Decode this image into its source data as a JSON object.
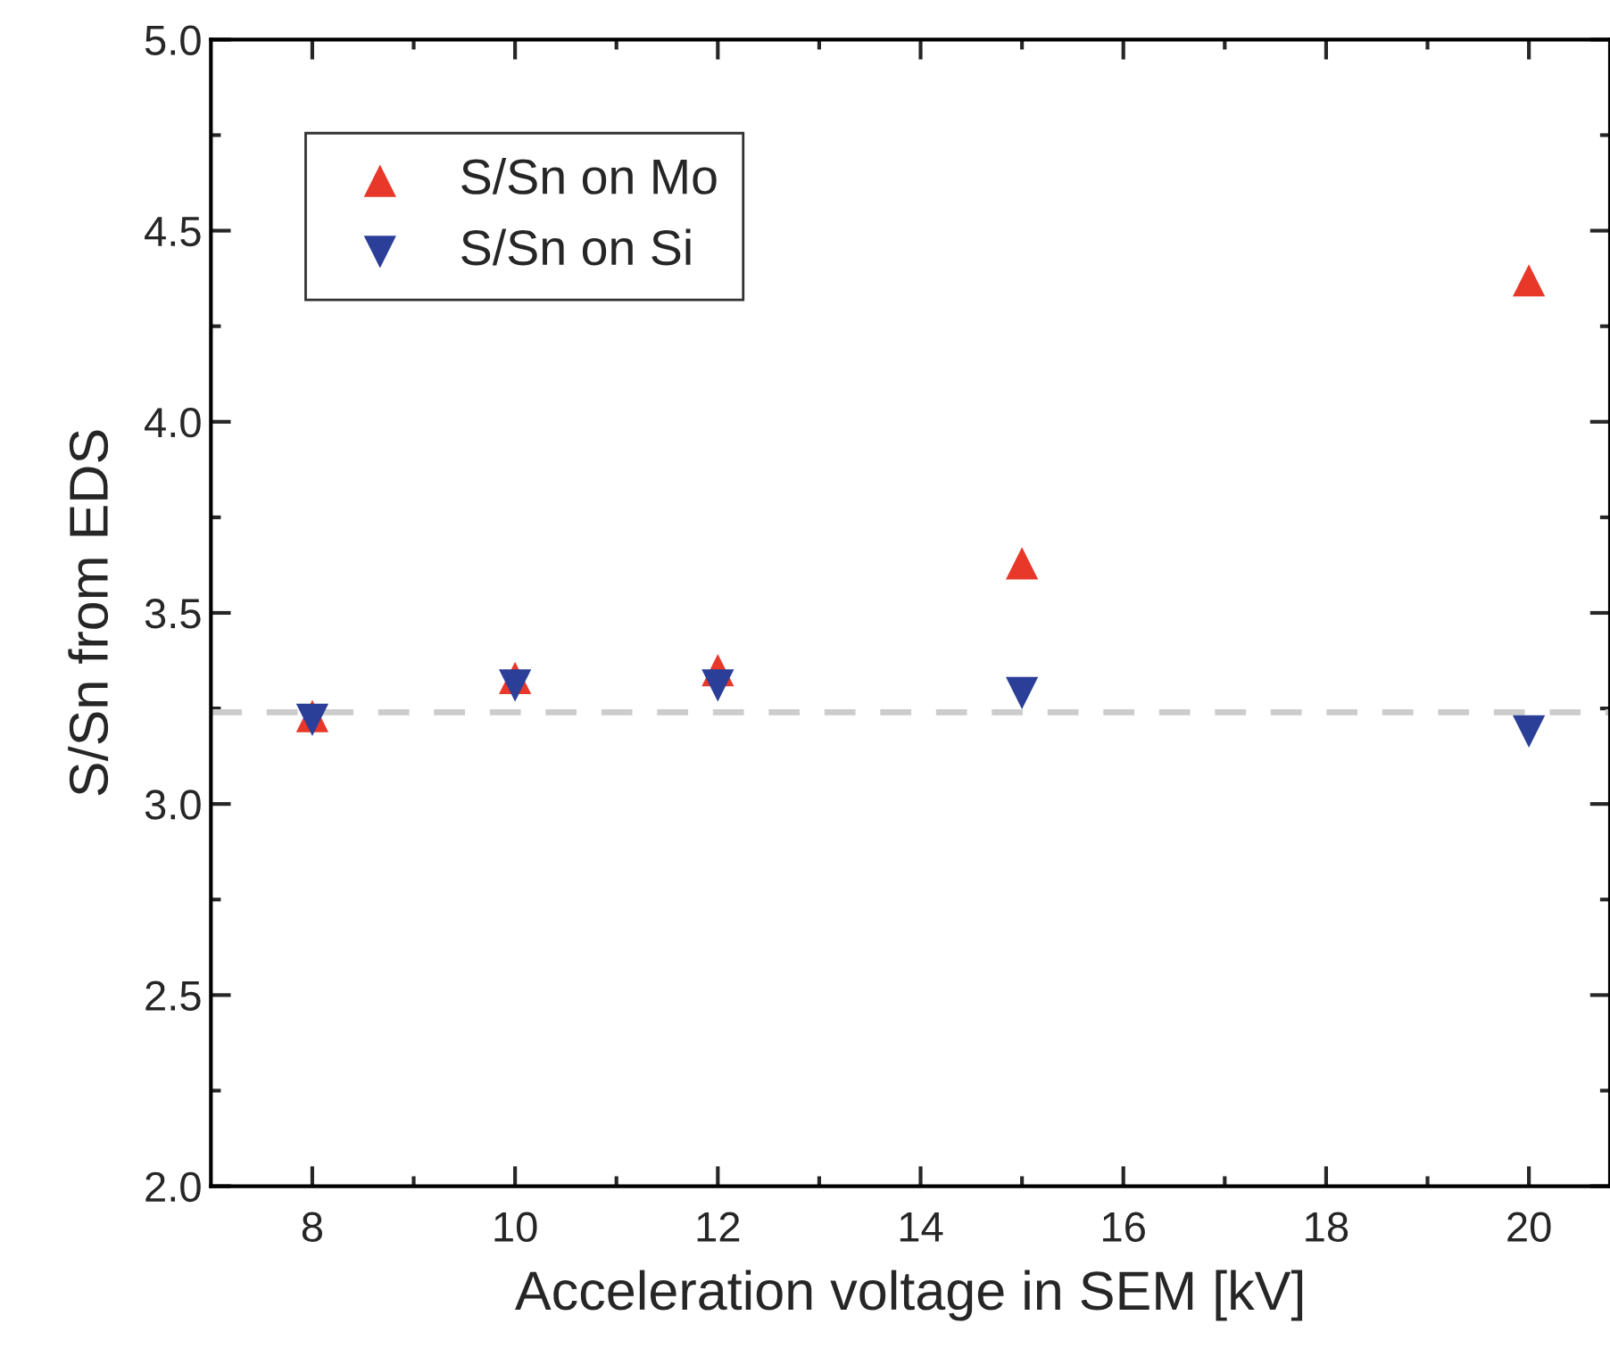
{
  "chart_data": {
    "type": "scatter",
    "xlabel": "Acceleration voltage in SEM [kV]",
    "ylabel": "S/Sn from EDS",
    "x": [
      8,
      10,
      12,
      15,
      20
    ],
    "series": [
      {
        "name": "S/Sn on Mo",
        "color": "#e8382a",
        "marker": "triangle",
        "values": [
          3.23,
          3.33,
          3.35,
          3.63,
          4.37
        ]
      },
      {
        "name": "S/Sn on Si",
        "color": "#2b3f98",
        "marker": "triangle_down",
        "values": [
          3.22,
          3.31,
          3.31,
          3.29,
          3.19
        ]
      }
    ],
    "xlim": [
      7,
      20.8
    ],
    "ylim": [
      2.0,
      5.0
    ],
    "xticks": [
      8,
      {
        "value": 9,
        "label": null
      },
      10,
      {
        "value": 11,
        "label": null
      },
      12,
      {
        "value": 13,
        "label": null
      },
      14,
      {
        "value": 15,
        "label": null
      },
      16,
      {
        "value": 17,
        "label": null
      },
      18,
      {
        "value": 19,
        "label": null
      },
      20
    ],
    "yticks": [
      {
        "value": 2.0,
        "label": "2.0"
      },
      {
        "value": 2.25,
        "label": null
      },
      {
        "value": 2.5,
        "label": "2.5"
      },
      {
        "value": 2.75,
        "label": null
      },
      {
        "value": 3.0,
        "label": "3.0"
      },
      {
        "value": 3.25,
        "label": null
      },
      {
        "value": 3.5,
        "label": "3.5"
      },
      {
        "value": 3.75,
        "label": null
      },
      {
        "value": 4.0,
        "label": "4.0"
      },
      {
        "value": 4.25,
        "label": null
      },
      {
        "value": 4.5,
        "label": "4.5"
      },
      {
        "value": 4.75,
        "label": null
      },
      {
        "value": 5.0,
        "label": "5.0"
      }
    ],
    "ref_lines": [
      {
        "axis": "y",
        "value": 3.24,
        "color": "#cccccc",
        "line_style": "dashed"
      }
    ],
    "grid": false,
    "legend": "top left"
  }
}
